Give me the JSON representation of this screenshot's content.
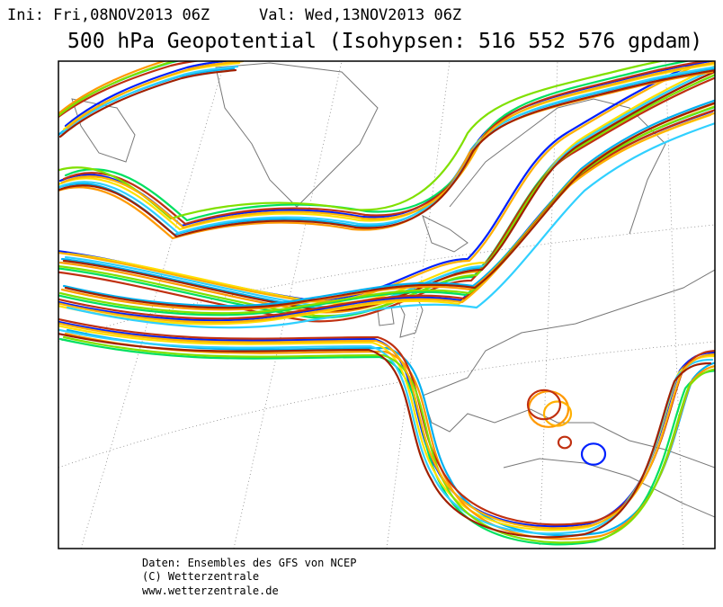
{
  "header": {
    "init": "Ini: Fri,08NOV2013 06Z",
    "valid": "Val: Wed,13NOV2013 06Z",
    "title": "500 hPa Geopotential (Isohypsen: 516 552 576 gpdam)"
  },
  "footer": {
    "lines": [
      "Daten: Ensembles des GFS von NCEP",
      "(C) Wetterzentrale",
      "www.wetterzentrale.de"
    ]
  }
}
